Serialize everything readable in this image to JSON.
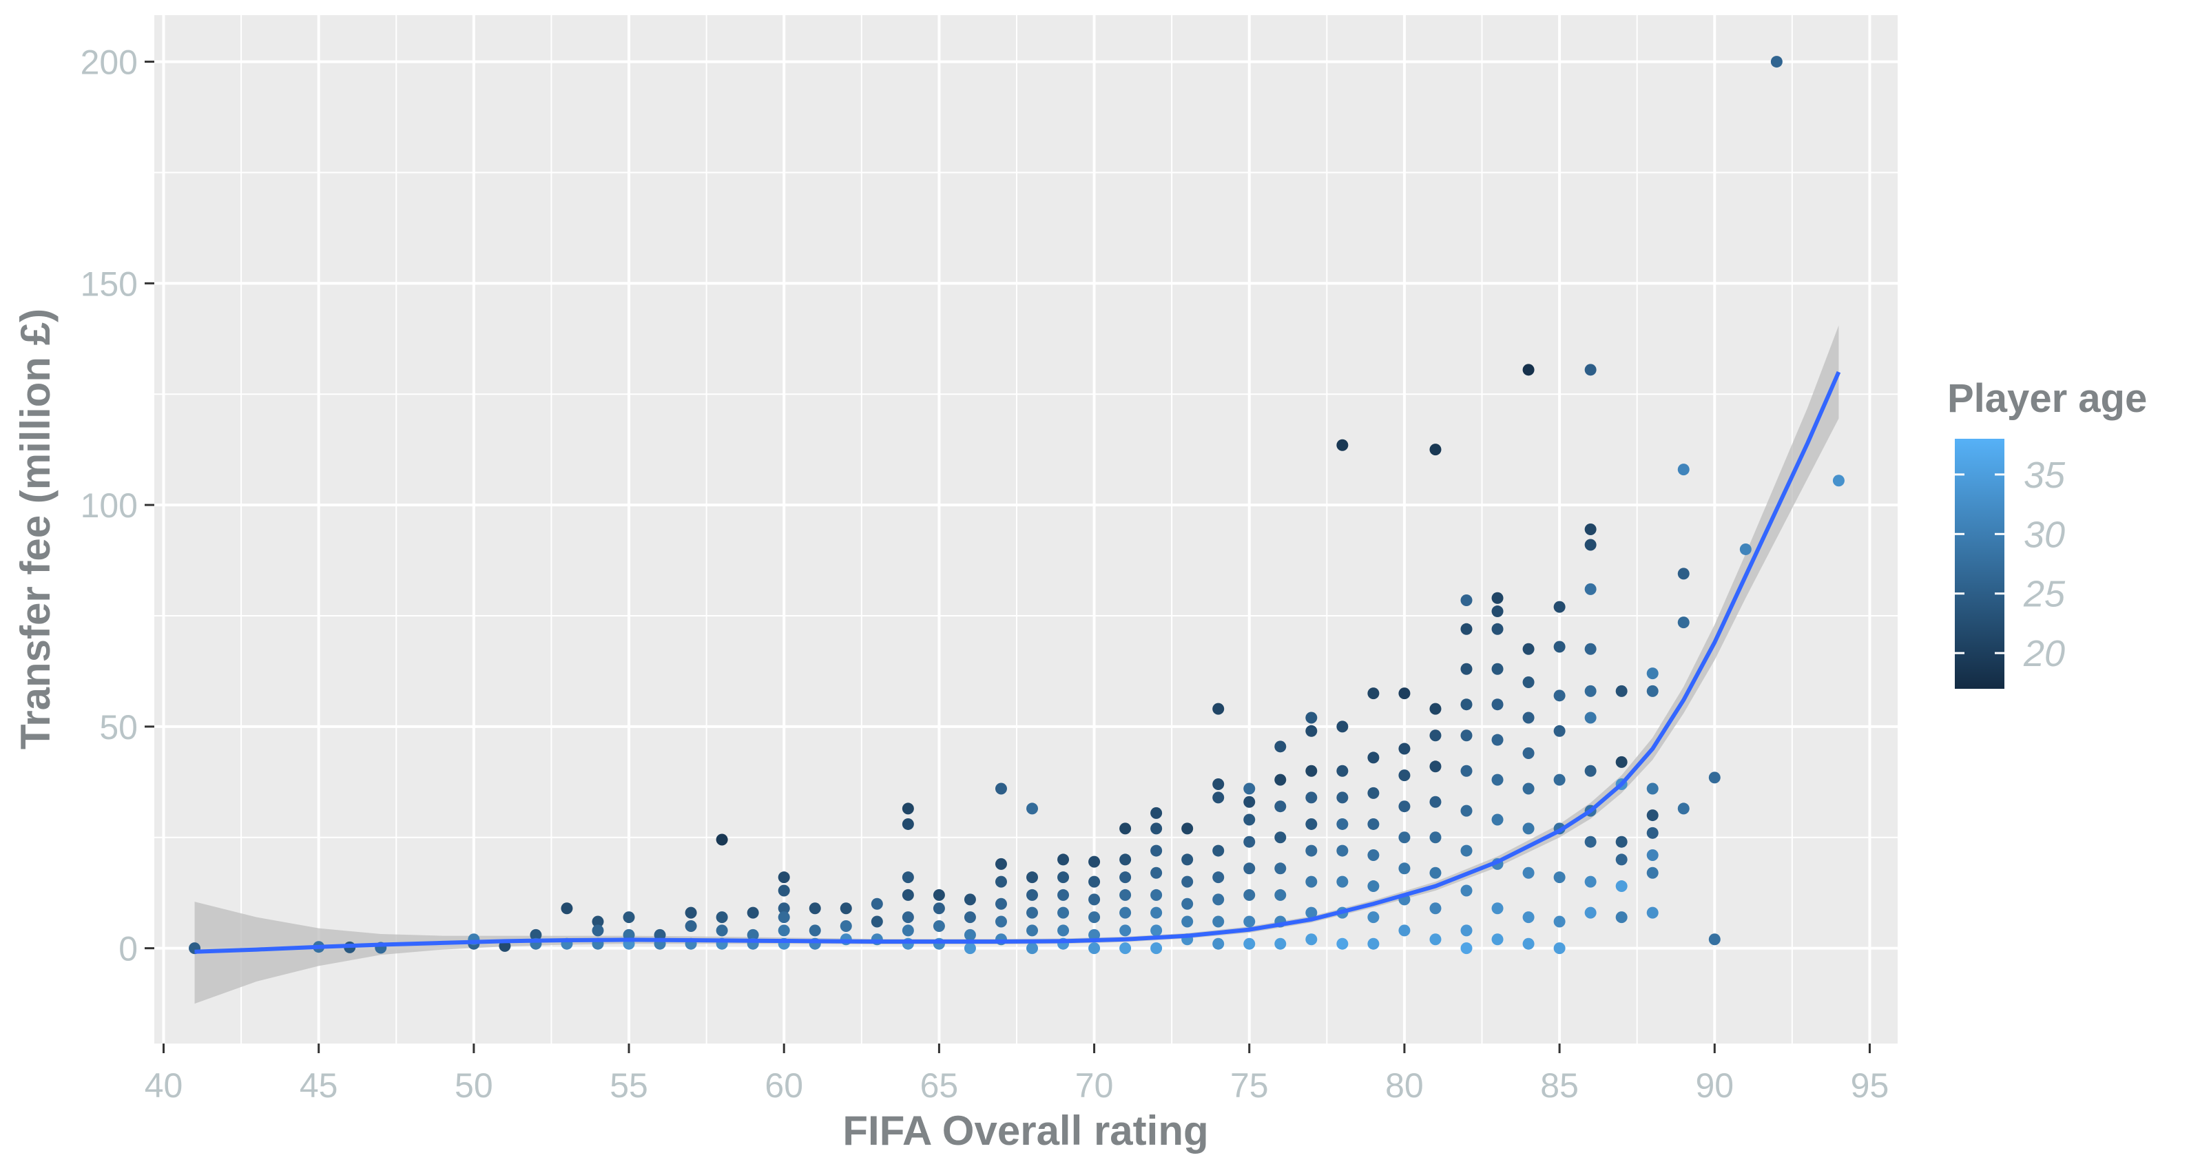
{
  "chart_data": {
    "type": "scatter",
    "xlabel": "FIFA Overall rating",
    "ylabel": "Transfer fee (million £)",
    "xlim": [
      39.7,
      95.9
    ],
    "ylim": [
      -21.5,
      210.5
    ],
    "x_ticks": [
      40,
      45,
      50,
      55,
      60,
      65,
      70,
      75,
      80,
      85,
      90,
      95
    ],
    "y_ticks": [
      0,
      50,
      100,
      150,
      200
    ],
    "grid": true,
    "legend": {
      "title": "Player age",
      "position": "right",
      "type": "colorbar",
      "range": [
        17,
        38
      ],
      "labels": [
        20,
        25,
        30,
        35
      ],
      "color_low": "#132b43",
      "color_high": "#56b1f7"
    },
    "colors": {
      "panel": "#ebebeb",
      "grid_major": "#ffffff",
      "smooth_line": "#3366ff",
      "ribbon": "#bdbdbd"
    },
    "points": [
      [
        41,
        0,
        25
      ],
      [
        45,
        0.3,
        28
      ],
      [
        46,
        0.2,
        24
      ],
      [
        47,
        0.1,
        27
      ],
      [
        50,
        1,
        26
      ],
      [
        50,
        2,
        30
      ],
      [
        51,
        0.5,
        22
      ],
      [
        52,
        3,
        24
      ],
      [
        52,
        1,
        29
      ],
      [
        53,
        9,
        22
      ],
      [
        53,
        1,
        31
      ],
      [
        54,
        6,
        23
      ],
      [
        54,
        4,
        26
      ],
      [
        54,
        1,
        30
      ],
      [
        55,
        7,
        24
      ],
      [
        55,
        3,
        28
      ],
      [
        55,
        1,
        33
      ],
      [
        56,
        3,
        25
      ],
      [
        56,
        1,
        30
      ],
      [
        57,
        8,
        23
      ],
      [
        57,
        5,
        26
      ],
      [
        57,
        1,
        31
      ],
      [
        58,
        24.5,
        19
      ],
      [
        58,
        7,
        24
      ],
      [
        58,
        4,
        27
      ],
      [
        58,
        1,
        32
      ],
      [
        59,
        8,
        23
      ],
      [
        59,
        3,
        28
      ],
      [
        59,
        1,
        31
      ],
      [
        60,
        16,
        22
      ],
      [
        60,
        13,
        24
      ],
      [
        60,
        9,
        25
      ],
      [
        60,
        7,
        27
      ],
      [
        60,
        4,
        29
      ],
      [
        60,
        1,
        33
      ],
      [
        61,
        9,
        23
      ],
      [
        61,
        4,
        27
      ],
      [
        61,
        1,
        31
      ],
      [
        62,
        9,
        23
      ],
      [
        62,
        5,
        28
      ],
      [
        62,
        2,
        32
      ],
      [
        63,
        10,
        26
      ],
      [
        63,
        6,
        24
      ],
      [
        63,
        2,
        31
      ],
      [
        64,
        31.5,
        21
      ],
      [
        64,
        28,
        22
      ],
      [
        64,
        16,
        24
      ],
      [
        64,
        12,
        23
      ],
      [
        64,
        7,
        26
      ],
      [
        64,
        4,
        29
      ],
      [
        64,
        1,
        33
      ],
      [
        65,
        12,
        22
      ],
      [
        65,
        9,
        25
      ],
      [
        65,
        5,
        28
      ],
      [
        65,
        1,
        32
      ],
      [
        66,
        11,
        23
      ],
      [
        66,
        7,
        26
      ],
      [
        66,
        3,
        30
      ],
      [
        66,
        0,
        34
      ],
      [
        67,
        36,
        25
      ],
      [
        67,
        19,
        22
      ],
      [
        67,
        15,
        24
      ],
      [
        67,
        10,
        26
      ],
      [
        67,
        6,
        28
      ],
      [
        67,
        2,
        31
      ],
      [
        68,
        31.5,
        27
      ],
      [
        68,
        16,
        23
      ],
      [
        68,
        12,
        25
      ],
      [
        68,
        8,
        27
      ],
      [
        68,
        4,
        29
      ],
      [
        68,
        0,
        33
      ],
      [
        69,
        20,
        22
      ],
      [
        69,
        16,
        24
      ],
      [
        69,
        12,
        26
      ],
      [
        69,
        8,
        28
      ],
      [
        69,
        4,
        30
      ],
      [
        69,
        1,
        34
      ],
      [
        70,
        19.5,
        22
      ],
      [
        70,
        15,
        24
      ],
      [
        70,
        11,
        26
      ],
      [
        70,
        7,
        28
      ],
      [
        70,
        3,
        31
      ],
      [
        70,
        0,
        34
      ],
      [
        71,
        27,
        21
      ],
      [
        71,
        20,
        23
      ],
      [
        71,
        16,
        25
      ],
      [
        71,
        12,
        27
      ],
      [
        71,
        8,
        29
      ],
      [
        71,
        4,
        31
      ],
      [
        71,
        0,
        35
      ],
      [
        72,
        30.5,
        22
      ],
      [
        72,
        27,
        23
      ],
      [
        72,
        22,
        25
      ],
      [
        72,
        17,
        26
      ],
      [
        72,
        12,
        28
      ],
      [
        72,
        8,
        30
      ],
      [
        72,
        4,
        32
      ],
      [
        72,
        0,
        35
      ],
      [
        73,
        27,
        21
      ],
      [
        73,
        20,
        24
      ],
      [
        73,
        15,
        26
      ],
      [
        73,
        10,
        28
      ],
      [
        73,
        6,
        30
      ],
      [
        73,
        2,
        33
      ],
      [
        74,
        54,
        21
      ],
      [
        74,
        37,
        22
      ],
      [
        74,
        34,
        23
      ],
      [
        74,
        22,
        24
      ],
      [
        74,
        16,
        26
      ],
      [
        74,
        11,
        28
      ],
      [
        74,
        6,
        30
      ],
      [
        74,
        1,
        33
      ],
      [
        75,
        36,
        27
      ],
      [
        75,
        33,
        22
      ],
      [
        75,
        29,
        24
      ],
      [
        75,
        24,
        25
      ],
      [
        75,
        18,
        26
      ],
      [
        75,
        12,
        28
      ],
      [
        75,
        6,
        31
      ],
      [
        75,
        1,
        35
      ],
      [
        76,
        45.5,
        23
      ],
      [
        76,
        38,
        21
      ],
      [
        76,
        32,
        25
      ],
      [
        76,
        25,
        24
      ],
      [
        76,
        18,
        27
      ],
      [
        76,
        12,
        29
      ],
      [
        76,
        6,
        31
      ],
      [
        76,
        1,
        35
      ],
      [
        77,
        52,
        24
      ],
      [
        77,
        49,
        22
      ],
      [
        77,
        40,
        21
      ],
      [
        77,
        34,
        25
      ],
      [
        77,
        28,
        24
      ],
      [
        77,
        22,
        27
      ],
      [
        77,
        15,
        29
      ],
      [
        77,
        8,
        31
      ],
      [
        77,
        2,
        35
      ],
      [
        78,
        113.5,
        19
      ],
      [
        78,
        50,
        22
      ],
      [
        78,
        40,
        23
      ],
      [
        78,
        34,
        25
      ],
      [
        78,
        28,
        27
      ],
      [
        78,
        22,
        28
      ],
      [
        78,
        15,
        30
      ],
      [
        78,
        8,
        32
      ],
      [
        78,
        1,
        36
      ],
      [
        79,
        57.5,
        21
      ],
      [
        79,
        43,
        22
      ],
      [
        79,
        35,
        24
      ],
      [
        79,
        28,
        26
      ],
      [
        79,
        21,
        28
      ],
      [
        79,
        14,
        30
      ],
      [
        79,
        7,
        32
      ],
      [
        79,
        1,
        35
      ],
      [
        80,
        57.5,
        20
      ],
      [
        80,
        45,
        22
      ],
      [
        80,
        39,
        23
      ],
      [
        80,
        32,
        25
      ],
      [
        80,
        25,
        27
      ],
      [
        80,
        18,
        29
      ],
      [
        80,
        11,
        31
      ],
      [
        80,
        4,
        34
      ],
      [
        81,
        112.5,
        19
      ],
      [
        81,
        54,
        21
      ],
      [
        81,
        48,
        23
      ],
      [
        81,
        41,
        22
      ],
      [
        81,
        33,
        25
      ],
      [
        81,
        25,
        27
      ],
      [
        81,
        17,
        29
      ],
      [
        81,
        9,
        31
      ],
      [
        81,
        2,
        35
      ],
      [
        82,
        78.5,
        26
      ],
      [
        82,
        72,
        22
      ],
      [
        82,
        63,
        23
      ],
      [
        82,
        55,
        24
      ],
      [
        82,
        48,
        25
      ],
      [
        82,
        40,
        26
      ],
      [
        82,
        31,
        27
      ],
      [
        82,
        22,
        29
      ],
      [
        82,
        13,
        31
      ],
      [
        82,
        4,
        34
      ],
      [
        82,
        0,
        36
      ],
      [
        83,
        79,
        21
      ],
      [
        83,
        76,
        22
      ],
      [
        83,
        72,
        23
      ],
      [
        83,
        63,
        24
      ],
      [
        83,
        55,
        25
      ],
      [
        83,
        47,
        26
      ],
      [
        83,
        38,
        27
      ],
      [
        83,
        29,
        29
      ],
      [
        83,
        19,
        31
      ],
      [
        83,
        9,
        33
      ],
      [
        83,
        2,
        35
      ],
      [
        84,
        130.5,
        18
      ],
      [
        84,
        67.5,
        22
      ],
      [
        84,
        60,
        24
      ],
      [
        84,
        52,
        25
      ],
      [
        84,
        44,
        26
      ],
      [
        84,
        36,
        27
      ],
      [
        84,
        27,
        29
      ],
      [
        84,
        17,
        31
      ],
      [
        84,
        7,
        33
      ],
      [
        84,
        1,
        35
      ],
      [
        85,
        77,
        22
      ],
      [
        85,
        68,
        24
      ],
      [
        85,
        57,
        26
      ],
      [
        85,
        49,
        25
      ],
      [
        85,
        38,
        27
      ],
      [
        85,
        27,
        28
      ],
      [
        85,
        16,
        30
      ],
      [
        85,
        6,
        32
      ],
      [
        85,
        0,
        35
      ],
      [
        86,
        130.5,
        25
      ],
      [
        86,
        94.5,
        21
      ],
      [
        86,
        91,
        22
      ],
      [
        86,
        81,
        28
      ],
      [
        86,
        67.5,
        26
      ],
      [
        86,
        58,
        27
      ],
      [
        86,
        52,
        29
      ],
      [
        86,
        40,
        25
      ],
      [
        86,
        31,
        28
      ],
      [
        86,
        24,
        26
      ],
      [
        86,
        15,
        32
      ],
      [
        86,
        8,
        34
      ],
      [
        87,
        58,
        23
      ],
      [
        87,
        42,
        21
      ],
      [
        87,
        37,
        33
      ],
      [
        87,
        24,
        24
      ],
      [
        87,
        20,
        26
      ],
      [
        87,
        14,
        35
      ],
      [
        87,
        7,
        30
      ],
      [
        88,
        62,
        30
      ],
      [
        88,
        58,
        27
      ],
      [
        88,
        36,
        29
      ],
      [
        88,
        30,
        23
      ],
      [
        88,
        26,
        25
      ],
      [
        88,
        21,
        31
      ],
      [
        88,
        17,
        29
      ],
      [
        88,
        8,
        33
      ],
      [
        89,
        108,
        31
      ],
      [
        89,
        84.5,
        25
      ],
      [
        89,
        73.5,
        27
      ],
      [
        89,
        31.5,
        28
      ],
      [
        90,
        38.5,
        27
      ],
      [
        90,
        2,
        28
      ],
      [
        91,
        90,
        31
      ],
      [
        92,
        200,
        26
      ],
      [
        94,
        105.5,
        33
      ]
    ],
    "smooth": [
      [
        41,
        -0.8
      ],
      [
        43,
        -0.3
      ],
      [
        45,
        0.3
      ],
      [
        47,
        0.8
      ],
      [
        49,
        1.2
      ],
      [
        51,
        1.6
      ],
      [
        53,
        1.8
      ],
      [
        55,
        1.9
      ],
      [
        57,
        1.8
      ],
      [
        59,
        1.7
      ],
      [
        61,
        1.6
      ],
      [
        63,
        1.5
      ],
      [
        65,
        1.5
      ],
      [
        67,
        1.5
      ],
      [
        69,
        1.6
      ],
      [
        71,
        2
      ],
      [
        73,
        2.8
      ],
      [
        75,
        4.2
      ],
      [
        77,
        6.5
      ],
      [
        79,
        10
      ],
      [
        81,
        14
      ],
      [
        83,
        19.5
      ],
      [
        85,
        26.5
      ],
      [
        86,
        31
      ],
      [
        87,
        37
      ],
      [
        88,
        45
      ],
      [
        89,
        56
      ],
      [
        90,
        69
      ],
      [
        91,
        84
      ],
      [
        92,
        99
      ],
      [
        93,
        114
      ],
      [
        94,
        130
      ]
    ],
    "ribbon": [
      [
        41,
        -12.5,
        10.5
      ],
      [
        43,
        -7.5,
        7
      ],
      [
        45,
        -4,
        4.5
      ],
      [
        47,
        -1.5,
        3.2
      ],
      [
        49,
        -0.3,
        2.8
      ],
      [
        51,
        0.4,
        2.8
      ],
      [
        53,
        0.8,
        2.8
      ],
      [
        55,
        1,
        2.8
      ],
      [
        57,
        1,
        2.7
      ],
      [
        59,
        1,
        2.5
      ],
      [
        61,
        1,
        2.3
      ],
      [
        63,
        0.9,
        2.1
      ],
      [
        65,
        0.9,
        2.1
      ],
      [
        67,
        0.9,
        2.1
      ],
      [
        69,
        1,
        2.2
      ],
      [
        71,
        1.4,
        2.6
      ],
      [
        73,
        2.2,
        3.4
      ],
      [
        75,
        3.5,
        4.9
      ],
      [
        77,
        5.8,
        7.2
      ],
      [
        79,
        9.2,
        10.8
      ],
      [
        81,
        13,
        15
      ],
      [
        83,
        18.3,
        20.7
      ],
      [
        85,
        25,
        28
      ],
      [
        86,
        29.2,
        32.8
      ],
      [
        87,
        35,
        39
      ],
      [
        88,
        42.5,
        47.5
      ],
      [
        89,
        53,
        59
      ],
      [
        90,
        65,
        73
      ],
      [
        91,
        79,
        89
      ],
      [
        92,
        92.5,
        105.5
      ],
      [
        93,
        106,
        122
      ],
      [
        94,
        119.5,
        140.5
      ]
    ]
  }
}
